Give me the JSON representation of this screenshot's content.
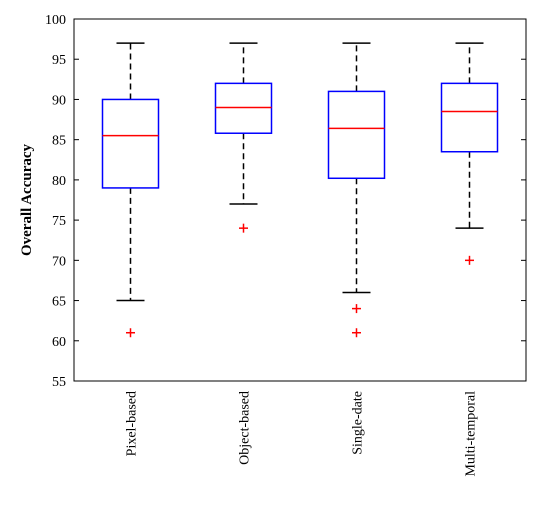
{
  "chart_data": {
    "type": "boxplot",
    "title": "",
    "xlabel": "",
    "ylabel": "Overall Accuracy",
    "ylim": [
      55,
      100
    ],
    "yticks": [
      55,
      60,
      65,
      70,
      75,
      80,
      85,
      90,
      95,
      100
    ],
    "grid": false,
    "categories": [
      "Pixel-based",
      "Object-based",
      "Single-date",
      "Multi-temporal"
    ],
    "boxes": [
      {
        "category": "Pixel-based",
        "whisker_low": 65,
        "q1": 79,
        "median": 85.5,
        "q3": 90,
        "whisker_high": 97,
        "outliers": [
          61
        ]
      },
      {
        "category": "Object-based",
        "whisker_low": 77,
        "q1": 85.8,
        "median": 89,
        "q3": 92,
        "whisker_high": 97,
        "outliers": [
          74
        ]
      },
      {
        "category": "Single-date",
        "whisker_low": 66,
        "q1": 80.2,
        "median": 86.4,
        "q3": 91,
        "whisker_high": 97,
        "outliers": [
          64,
          61
        ]
      },
      {
        "category": "Multi-temporal",
        "whisker_low": 74,
        "q1": 83.5,
        "median": 88.5,
        "q3": 92,
        "whisker_high": 97,
        "outliers": [
          70
        ]
      }
    ],
    "colors": {
      "box": "#0000ff",
      "median": "#ff0000",
      "outlier": "#ff0000",
      "whisker": "#000000",
      "axis": "#000000"
    }
  }
}
